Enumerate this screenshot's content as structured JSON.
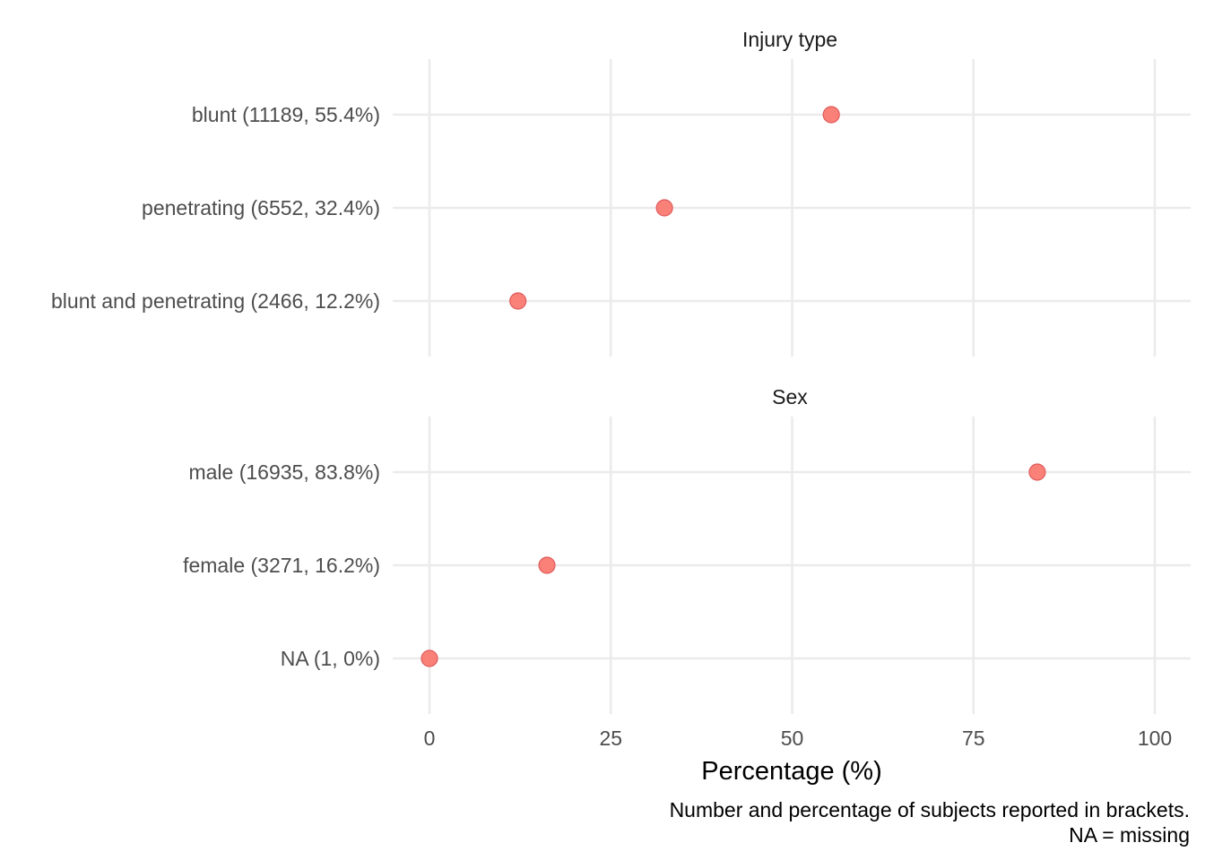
{
  "chart_data": {
    "type": "scatter",
    "xlabel": "Percentage (%)",
    "xlim": [
      0,
      100
    ],
    "xticks": [
      0,
      25,
      50,
      75,
      100
    ],
    "panels": [
      {
        "title": "Injury type",
        "categories": [
          "blunt (11189, 55.4%)",
          "penetrating (6552, 32.4%)",
          "blunt and penetrating (2466, 12.2%)"
        ],
        "values": [
          55.4,
          32.4,
          12.2
        ]
      },
      {
        "title": "Sex",
        "categories": [
          "male (16935, 83.8%)",
          "female (3271, 16.2%)",
          "NA (1, 0%)"
        ],
        "values": [
          83.8,
          16.2,
          0
        ]
      }
    ],
    "caption": [
      "Number and percentage of subjects reported in brackets.",
      "NA = missing"
    ],
    "point_color": "#F8766D",
    "point_stroke": "#E0595A",
    "grid": true
  }
}
